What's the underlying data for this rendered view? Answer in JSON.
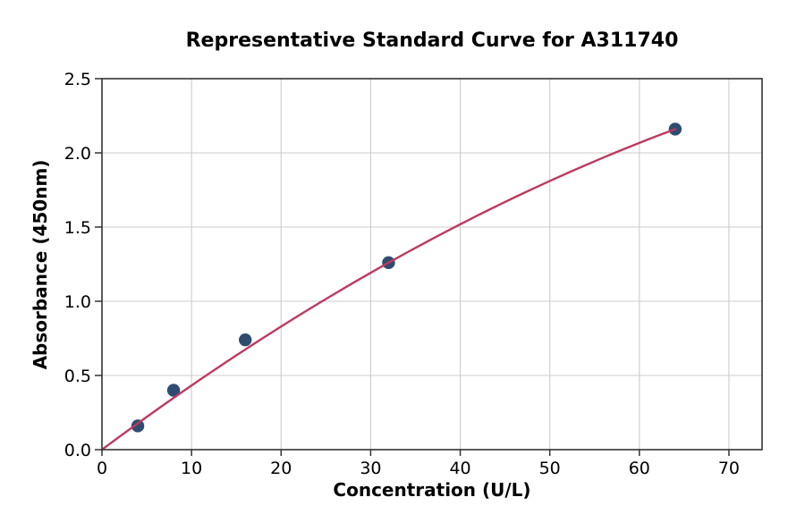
{
  "chart_data": {
    "type": "scatter",
    "title": "Representative Standard Curve for A311740",
    "xlabel": "Concentration (U/L)",
    "ylabel": "Absorbance (450nm)",
    "x": [
      4,
      8,
      16,
      32,
      64
    ],
    "y": [
      0.16,
      0.4,
      0.74,
      1.26,
      2.16
    ],
    "xlim": [
      0,
      73.7
    ],
    "ylim": [
      0,
      2.5
    ],
    "xticks": [
      0,
      10,
      20,
      30,
      40,
      50,
      60,
      70
    ],
    "yticks": [
      0.0,
      0.5,
      1.0,
      1.5,
      2.0,
      2.5
    ],
    "grid": true,
    "legend": "none",
    "fit_curve": {
      "model": "quadratic",
      "c1": 0.045,
      "c2": -0.0001758,
      "x_range": [
        0,
        64
      ]
    },
    "colors": {
      "point": "#2e4c70",
      "curve": "#bd3a5f",
      "grid": "#cccccc",
      "spine": "#333333",
      "text": "#000000"
    }
  }
}
